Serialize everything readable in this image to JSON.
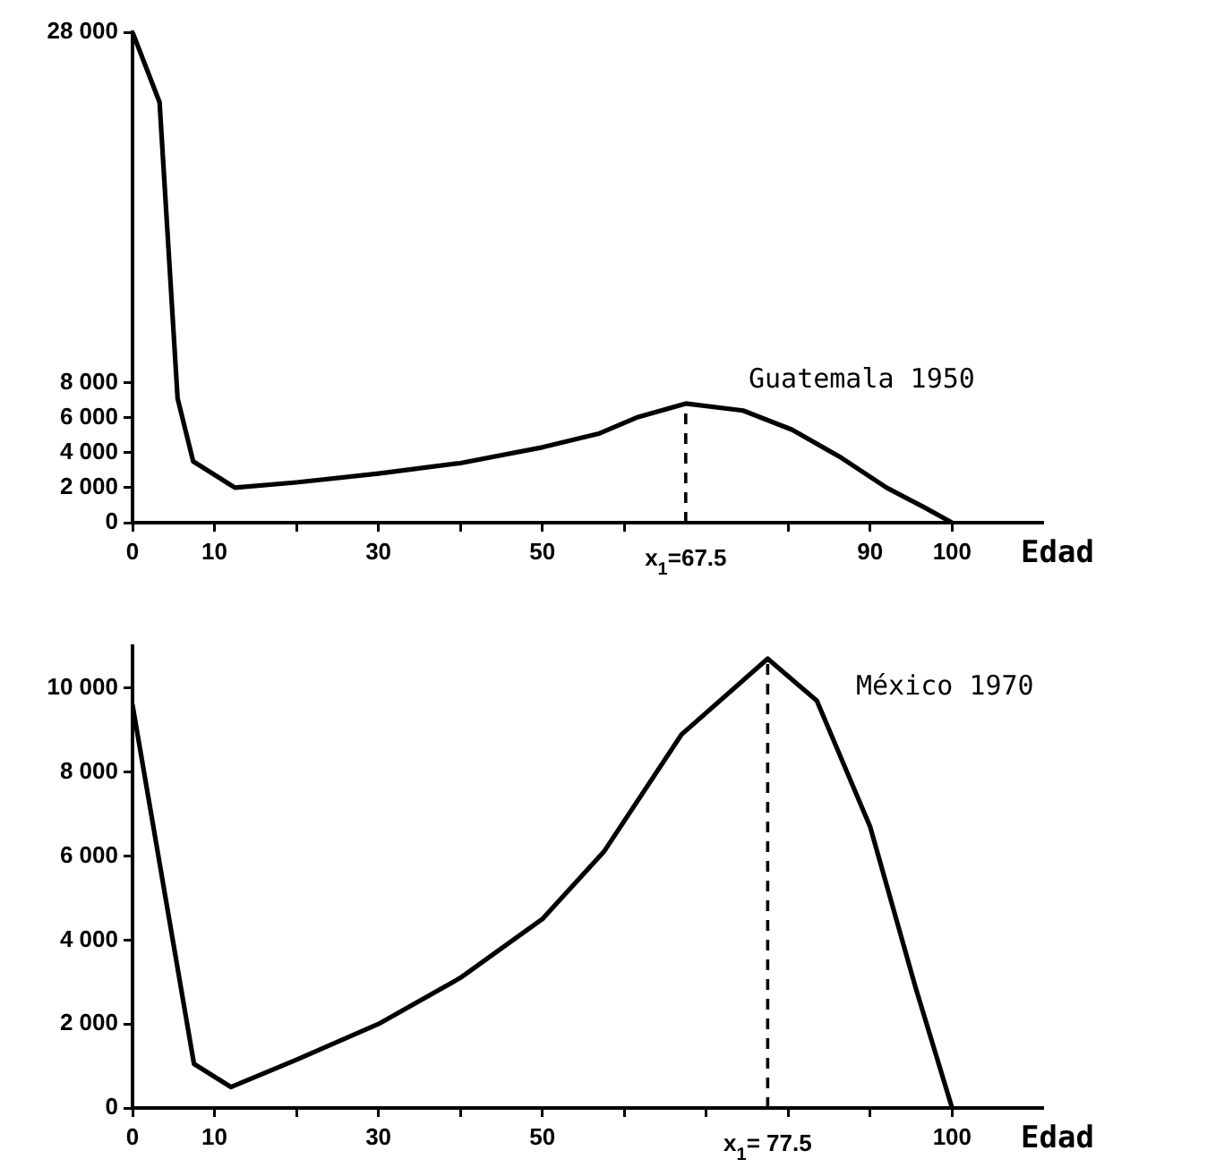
{
  "chart_data": [
    {
      "type": "line",
      "x": [
        0,
        3.3,
        5.5,
        7.4,
        12.5,
        20,
        30,
        40,
        50,
        57,
        61.5,
        67.5,
        74.5,
        80.5,
        86.5,
        92,
        96.5,
        100
      ],
      "series": [
        {
          "name": "Guatemala 1950",
          "color": "#000000",
          "values": [
            28000,
            24000,
            7100,
            3500,
            2000,
            2300,
            2800,
            3400,
            4300,
            5100,
            6000,
            6800,
            6400,
            5300,
            3700,
            2000,
            900,
            0
          ]
        }
      ],
      "xlabel": "Edad",
      "xlim": [
        0,
        111
      ],
      "xticks": [
        0,
        10,
        {
          "value": 20,
          "label": null
        },
        30,
        {
          "value": 40,
          "label": null
        },
        50,
        {
          "value": 60,
          "label": null
        },
        {
          "value": 80,
          "label": null
        },
        90,
        100
      ],
      "ylim": [
        0,
        28000
      ],
      "yticks": [
        {
          "value": 0,
          "label": "0"
        },
        {
          "value": 2000,
          "label": "2 000"
        },
        {
          "value": 4000,
          "label": "4 000"
        },
        {
          "value": 6000,
          "label": "6 000"
        },
        {
          "value": 8000,
          "label": "8 000"
        },
        {
          "value": 28000,
          "label": "28 000"
        }
      ],
      "ref_lines": [
        {
          "axis": "x",
          "value": 67.5,
          "label": "x$_{1}$=67.5",
          "line_style": "dashed"
        }
      ]
    },
    {
      "type": "line",
      "x": [
        0,
        7.5,
        12,
        20,
        30,
        40,
        50,
        57.5,
        67,
        77.5,
        83.5,
        90,
        95.5,
        100
      ],
      "series": [
        {
          "name": "México 1970",
          "color": "#000000",
          "values": [
            9600,
            1050,
            500,
            1150,
            2000,
            3100,
            4500,
            6100,
            8900,
            10700,
            9700,
            6700,
            2900,
            0
          ]
        }
      ],
      "xlabel": "Edad",
      "xlim": [
        0,
        111
      ],
      "xticks": [
        0,
        10,
        {
          "value": 20,
          "label": null
        },
        30,
        {
          "value": 40,
          "label": null
        },
        50,
        {
          "value": 60,
          "label": null
        },
        {
          "value": 70,
          "label": null
        },
        {
          "value": 80,
          "label": null
        },
        {
          "value": 90,
          "label": null
        },
        100
      ],
      "ylim": [
        0,
        11000
      ],
      "yticks": [
        {
          "value": 0,
          "label": "0"
        },
        {
          "value": 2000,
          "label": "2 000"
        },
        {
          "value": 4000,
          "label": "4 000"
        },
        {
          "value": 6000,
          "label": "6 000"
        },
        {
          "value": 8000,
          "label": "8 000"
        },
        {
          "value": 10000,
          "label": "10 000"
        }
      ],
      "ref_lines": [
        {
          "axis": "x",
          "value": 77.5,
          "label": "x$_{1}$= 77.5",
          "line_style": "dashed"
        }
      ]
    }
  ]
}
